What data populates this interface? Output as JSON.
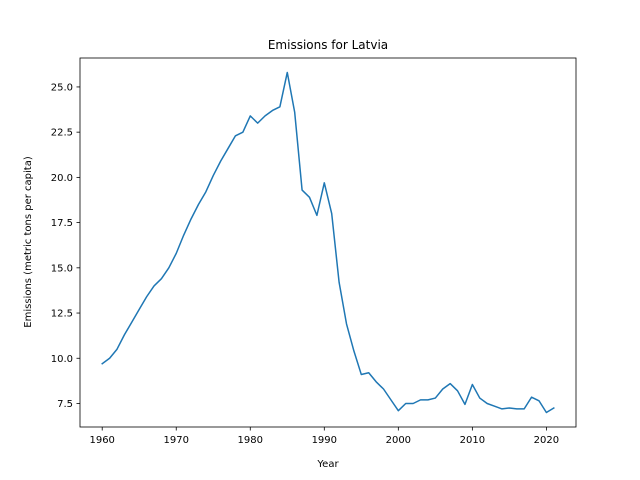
{
  "chart_data": {
    "type": "line",
    "title": "Emissions for Latvia",
    "xlabel": "Year",
    "ylabel": "Emissions (metric tons per capita)",
    "xlim": [
      1957,
      2024
    ],
    "ylim": [
      6.2,
      26.6
    ],
    "xticks": [
      1960,
      1970,
      1980,
      1990,
      2000,
      2010,
      2020
    ],
    "yticks": [
      7.5,
      10.0,
      12.5,
      15.0,
      17.5,
      20.0,
      22.5,
      25.0
    ],
    "grid": false,
    "color": "#1f77b4",
    "series": [
      {
        "x": [
          1960,
          1961,
          1962,
          1963,
          1964,
          1965,
          1966,
          1967,
          1968,
          1969,
          1970,
          1971,
          1972,
          1973,
          1974,
          1975,
          1976,
          1977,
          1978,
          1979,
          1980,
          1981,
          1982,
          1983,
          1984,
          1985,
          1986,
          1987,
          1988,
          1989,
          1990,
          1991,
          1992,
          1993,
          1994,
          1995,
          1996,
          1997,
          1998,
          1999,
          2000,
          2001,
          2002,
          2003,
          2004,
          2005,
          2006,
          2007,
          2008,
          2009,
          2010,
          2011,
          2012,
          2013,
          2014,
          2015,
          2016,
          2017,
          2018,
          2019,
          2020,
          2021
        ],
        "values": [
          9.7,
          10.0,
          10.5,
          11.3,
          12.0,
          12.7,
          13.4,
          14.0,
          14.4,
          15.0,
          15.8,
          16.8,
          17.7,
          18.5,
          19.2,
          20.1,
          20.9,
          21.6,
          22.3,
          22.5,
          23.4,
          23.0,
          23.4,
          23.7,
          23.9,
          25.8,
          23.6,
          19.3,
          18.9,
          17.9,
          19.7,
          18.0,
          14.2,
          11.9,
          10.4,
          9.1,
          9.2,
          8.7,
          8.3,
          7.7,
          7.1,
          7.5,
          7.5,
          7.7,
          7.7,
          7.8,
          8.3,
          8.6,
          8.2,
          7.45,
          8.55,
          7.8,
          7.5,
          7.35,
          7.2,
          7.25,
          7.2,
          7.2,
          7.85,
          7.65,
          7.0,
          7.25
        ]
      }
    ]
  }
}
